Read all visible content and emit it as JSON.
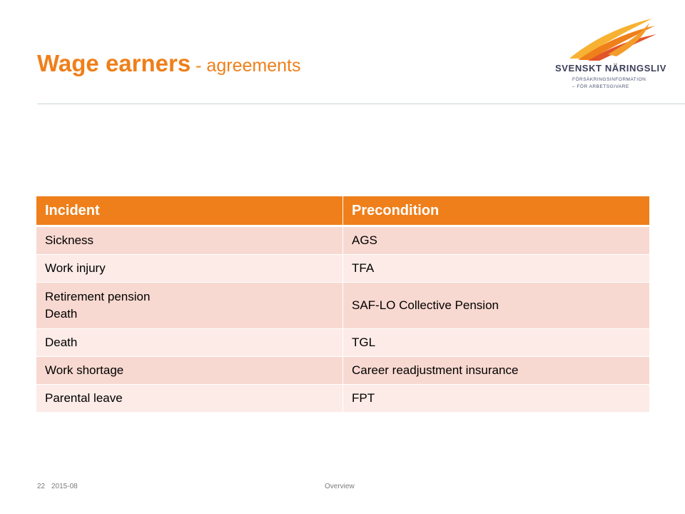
{
  "title": {
    "main": "Wage earners",
    "sub": " - agreements"
  },
  "logo": {
    "name": "SVENSKT NÄRINGSLIV",
    "line1": "FÖRSÄKRINGSINFORMATION",
    "line2": "– FÖR ARBETSGIVARE",
    "colors": [
      "#F7B233",
      "#EF7F1A",
      "#E2542A"
    ]
  },
  "table": {
    "headers": [
      "Incident",
      "Precondition"
    ],
    "rows": [
      {
        "incident": [
          "Sickness"
        ],
        "precondition": "AGS"
      },
      {
        "incident": [
          "Work injury"
        ],
        "precondition": "TFA"
      },
      {
        "incident": [
          "Retirement pension",
          "Death"
        ],
        "precondition": "SAF-LO Collective Pension"
      },
      {
        "incident": [
          "Death"
        ],
        "precondition": "TGL"
      },
      {
        "incident": [
          "Work shortage"
        ],
        "precondition": "Career readjustment insurance"
      },
      {
        "incident": [
          "Parental leave"
        ],
        "precondition": "FPT"
      }
    ]
  },
  "footer": {
    "page_number": "22",
    "date": "2015-08",
    "section": "Overview"
  },
  "colors": {
    "accent": "#EF7F1A",
    "row_odd": "#F8D9D1",
    "row_even": "#FCEBE7",
    "rule": "#c9d3d8"
  }
}
